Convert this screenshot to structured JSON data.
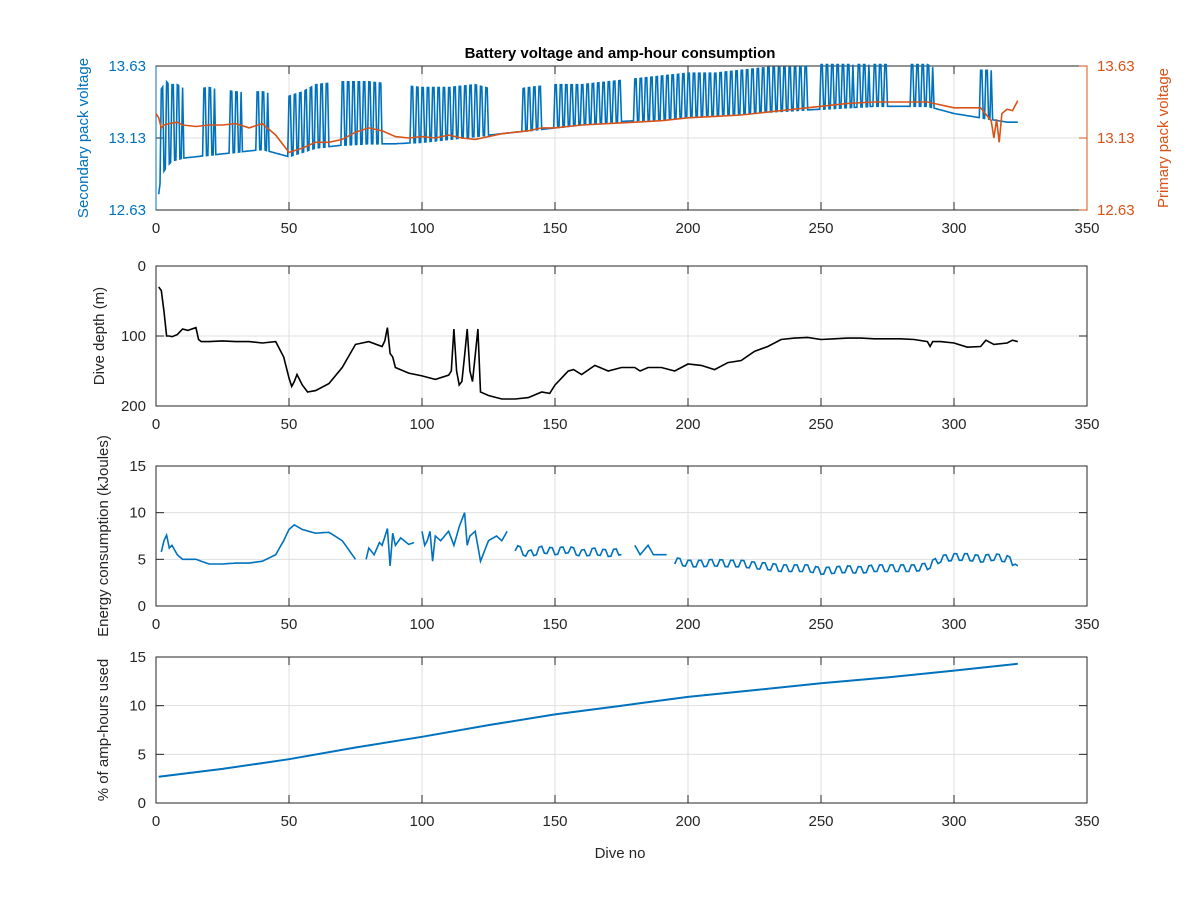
{
  "colors": {
    "secondary": "#0072BD",
    "primary": "#D95319",
    "depth": "#000000",
    "axis_text": "#262626",
    "grid": "#dfdfdf"
  },
  "chart_data": [
    {
      "id": "voltage",
      "type": "line",
      "title": "Battery voltage and amp-hour consumption",
      "xlabel": "",
      "ylabel": "Secondary pack voltage",
      "ylabel_right": "Primary pack voltage",
      "xlim": [
        0,
        350
      ],
      "ylim": [
        12.63,
        13.63
      ],
      "ylim_right": [
        12.63,
        13.63
      ],
      "xticks": [
        "0",
        "50",
        "100",
        "150",
        "200",
        "250",
        "300",
        "350"
      ],
      "yticks": [
        "12.63",
        "13.13",
        "13.63"
      ],
      "yticks_right": [
        "12.63",
        "13.13",
        "13.63"
      ],
      "grid": true,
      "series": [
        {
          "axis": "left",
          "color": "#0072BD",
          "x": [
            1,
            2,
            3,
            4,
            5,
            6,
            8,
            10,
            15,
            20,
            30,
            40,
            50,
            55,
            60,
            70,
            80,
            90,
            100,
            110,
            120,
            130,
            140,
            150,
            160,
            170,
            180,
            190,
            200,
            210,
            220,
            230,
            240,
            250,
            260,
            270,
            280,
            290,
            300,
            310,
            320,
            324
          ],
          "y": [
            12.74,
            12.88,
            12.9,
            12.93,
            12.95,
            12.97,
            12.98,
            12.99,
            13.0,
            13.01,
            13.03,
            13.05,
            13.0,
            13.03,
            13.06,
            13.08,
            13.09,
            13.09,
            13.1,
            13.12,
            13.14,
            13.16,
            13.18,
            13.2,
            13.22,
            13.24,
            13.25,
            13.26,
            13.28,
            13.29,
            13.3,
            13.31,
            13.32,
            13.33,
            13.34,
            13.35,
            13.35,
            13.35,
            13.3,
            13.27,
            13.24,
            13.24
          ],
          "spike_high": [
            13.43,
            13.47,
            13.5,
            13.52,
            13.5,
            13.5,
            13.5,
            13.48,
            13.47,
            13.48,
            13.45,
            13.45,
            13.42,
            13.45,
            13.5,
            13.52,
            13.52,
            13.5,
            13.48,
            13.48,
            13.5,
            13.45,
            13.48,
            13.5,
            13.5,
            13.52,
            13.54,
            13.56,
            13.58,
            13.58,
            13.6,
            13.62,
            13.62,
            13.64,
            13.64,
            13.64,
            13.64,
            13.64,
            13.55,
            13.6,
            13.6,
            13.55
          ],
          "spike_ranges": [
            [
              1,
              8
            ],
            [
              8,
              10
            ],
            [
              17,
              22
            ],
            [
              28,
              32
            ],
            [
              37,
              42
            ],
            [
              50,
              65
            ],
            [
              70,
              85
            ],
            [
              95,
              125
            ],
            [
              138,
              145
            ],
            [
              150,
              160
            ],
            [
              160,
              175
            ],
            [
              180,
              200
            ],
            [
              200,
              215
            ],
            [
              215,
              225
            ],
            [
              225,
              245
            ],
            [
              250,
              262
            ],
            [
              263,
              268
            ],
            [
              270,
              275
            ],
            [
              283,
              292
            ],
            [
              310,
              314
            ]
          ]
        },
        {
          "axis": "right",
          "color": "#D95319",
          "x": [
            0,
            1,
            2,
            3,
            5,
            8,
            10,
            15,
            20,
            25,
            30,
            35,
            40,
            45,
            50,
            55,
            60,
            65,
            70,
            75,
            80,
            85,
            90,
            95,
            100,
            105,
            110,
            115,
            120,
            125,
            130,
            135,
            140,
            145,
            150,
            160,
            170,
            180,
            190,
            200,
            210,
            220,
            230,
            240,
            250,
            260,
            270,
            280,
            290,
            300,
            310,
            314,
            315,
            316,
            317,
            318,
            320,
            322,
            324
          ],
          "y": [
            13.3,
            13.27,
            13.2,
            13.22,
            13.23,
            13.24,
            13.22,
            13.21,
            13.22,
            13.22,
            13.23,
            13.2,
            13.23,
            13.15,
            13.03,
            13.06,
            13.1,
            13.1,
            13.12,
            13.17,
            13.2,
            13.18,
            13.14,
            13.13,
            13.14,
            13.13,
            13.15,
            13.13,
            13.12,
            13.14,
            13.16,
            13.17,
            13.18,
            13.2,
            13.2,
            13.22,
            13.23,
            13.24,
            13.25,
            13.27,
            13.28,
            13.29,
            13.31,
            13.33,
            13.35,
            13.37,
            13.38,
            13.38,
            13.38,
            13.34,
            13.34,
            13.25,
            13.13,
            13.26,
            13.1,
            13.3,
            13.33,
            13.32,
            13.39
          ]
        }
      ]
    },
    {
      "id": "depth",
      "type": "line",
      "title": "",
      "xlabel": "",
      "ylabel": "Dive depth (m)",
      "xlim": [
        0,
        350
      ],
      "ylim": [
        0,
        200
      ],
      "y_reversed": true,
      "xticks": [
        "0",
        "50",
        "100",
        "150",
        "200",
        "250",
        "300",
        "350"
      ],
      "yticks": [
        "0",
        "100",
        "200"
      ],
      "grid": true,
      "series": [
        {
          "color": "#000000",
          "x": [
            1,
            2,
            3,
            4,
            5,
            6,
            8,
            10,
            12,
            15,
            16,
            17,
            20,
            25,
            30,
            35,
            40,
            45,
            48,
            50,
            51,
            52,
            53,
            55,
            57,
            60,
            65,
            70,
            75,
            80,
            85,
            86,
            87,
            88,
            89,
            90,
            95,
            100,
            103,
            105,
            110,
            111,
            112,
            113,
            114,
            115,
            116,
            117,
            118,
            119,
            120,
            121,
            122,
            125,
            130,
            135,
            140,
            145,
            148,
            150,
            155,
            157,
            160,
            165,
            170,
            175,
            180,
            182,
            185,
            190,
            195,
            200,
            205,
            210,
            215,
            220,
            225,
            230,
            235,
            240,
            245,
            250,
            255,
            260,
            265,
            270,
            275,
            280,
            285,
            290,
            291,
            292,
            295,
            300,
            305,
            310,
            312,
            315,
            320,
            322,
            324
          ],
          "y": [
            30,
            35,
            65,
            100,
            100,
            101,
            98,
            90,
            92,
            88,
            105,
            108,
            108,
            107,
            108,
            108,
            110,
            108,
            130,
            160,
            172,
            165,
            155,
            170,
            180,
            178,
            168,
            145,
            112,
            108,
            115,
            107,
            88,
            125,
            130,
            145,
            153,
            157,
            160,
            162,
            156,
            150,
            90,
            150,
            170,
            165,
            128,
            90,
            150,
            165,
            128,
            90,
            180,
            185,
            190,
            190,
            188,
            180,
            182,
            170,
            150,
            148,
            155,
            142,
            150,
            145,
            145,
            150,
            145,
            145,
            150,
            140,
            142,
            148,
            138,
            135,
            122,
            115,
            105,
            103,
            102,
            105,
            104,
            103,
            103,
            104,
            104,
            104,
            105,
            108,
            115,
            108,
            108,
            110,
            116,
            115,
            106,
            112,
            110,
            106,
            108
          ]
        }
      ]
    },
    {
      "id": "energy",
      "type": "line",
      "title": "",
      "xlabel": "",
      "ylabel": "Energy consumption (kJoules)",
      "xlim": [
        0,
        350
      ],
      "ylim": [
        0,
        15
      ],
      "xticks": [
        "0",
        "50",
        "100",
        "150",
        "200",
        "250",
        "300",
        "350"
      ],
      "yticks": [
        "0",
        "5",
        "10",
        "15"
      ],
      "grid": true,
      "segments": [
        {
          "x": [
            2,
            3,
            4,
            5,
            6,
            8,
            10,
            15,
            20,
            25,
            30,
            35,
            40,
            45,
            48,
            50,
            52,
            55,
            60,
            65,
            70,
            75
          ],
          "y": [
            5.8,
            7.0,
            7.6,
            6.2,
            6.5,
            5.5,
            5.0,
            5.0,
            4.5,
            4.5,
            4.6,
            4.6,
            4.8,
            5.5,
            7.0,
            8.2,
            8.7,
            8.2,
            7.8,
            7.9,
            7.0,
            5.0
          ]
        },
        {
          "x": [
            79,
            80,
            82,
            84,
            85,
            87,
            88,
            89,
            90,
            92,
            95,
            97
          ],
          "y": [
            5.0,
            6.2,
            5.5,
            6.8,
            6.5,
            8.3,
            4.3,
            7.8,
            6.5,
            7.3,
            6.6,
            6.8
          ]
        },
        {
          "x": [
            100,
            101,
            102,
            103,
            104,
            105,
            107,
            110,
            112,
            114,
            116,
            117,
            118,
            120,
            122,
            125,
            128,
            130,
            132
          ],
          "y": [
            8.0,
            6.5,
            7.0,
            8.0,
            4.8,
            7.5,
            7.0,
            8.0,
            6.5,
            8.5,
            10.0,
            6.5,
            7.5,
            8.0,
            4.8,
            7.0,
            7.5,
            7.0,
            8.0
          ]
        },
        {
          "x": [
            135,
            140,
            145,
            150,
            155,
            160,
            165,
            170,
            175
          ],
          "y": [
            6.2,
            5.5,
            6.0,
            5.8,
            6.0,
            5.6,
            5.8,
            5.6,
            5.8
          ]
        },
        {
          "x": [
            180,
            182,
            185,
            187,
            190,
            192
          ],
          "y": [
            6.5,
            5.5,
            6.5,
            5.5,
            5.5,
            5.5
          ]
        },
        {
          "x": [
            195,
            200,
            205,
            210,
            215,
            220,
            225,
            230,
            235,
            240,
            245,
            250,
            255,
            260,
            265,
            270,
            275,
            280,
            285,
            290,
            295,
            300,
            305,
            310,
            315,
            320,
            324
          ],
          "y": [
            4.8,
            4.5,
            4.5,
            4.6,
            4.5,
            4.5,
            4.3,
            4.2,
            4.0,
            4.0,
            4.0,
            3.7,
            3.8,
            3.9,
            3.8,
            4.0,
            4.0,
            4.0,
            4.0,
            4.2,
            5.0,
            5.2,
            5.2,
            5.0,
            5.2,
            5.0,
            4.3
          ]
        }
      ],
      "oscillating_ranges": [
        [
          135,
          175
        ],
        [
          195,
          292
        ],
        [
          293,
          322
        ]
      ],
      "series": [
        {
          "color": "#0072BD"
        }
      ]
    },
    {
      "id": "amphours",
      "type": "line",
      "title": "",
      "xlabel": "Dive no",
      "ylabel": "% of amp-hours used",
      "xlim": [
        0,
        350
      ],
      "ylim": [
        0,
        15
      ],
      "xticks": [
        "0",
        "50",
        "100",
        "150",
        "200",
        "250",
        "300",
        "350"
      ],
      "yticks": [
        "0",
        "5",
        "10",
        "15"
      ],
      "grid": true,
      "series": [
        {
          "color": "#0072BD",
          "x": [
            1,
            25,
            50,
            75,
            100,
            125,
            150,
            175,
            200,
            225,
            250,
            275,
            300,
            324
          ],
          "y": [
            2.7,
            3.5,
            4.5,
            5.7,
            6.8,
            8.0,
            9.1,
            10.0,
            10.9,
            11.6,
            12.3,
            12.9,
            13.6,
            14.3
          ]
        }
      ]
    }
  ]
}
